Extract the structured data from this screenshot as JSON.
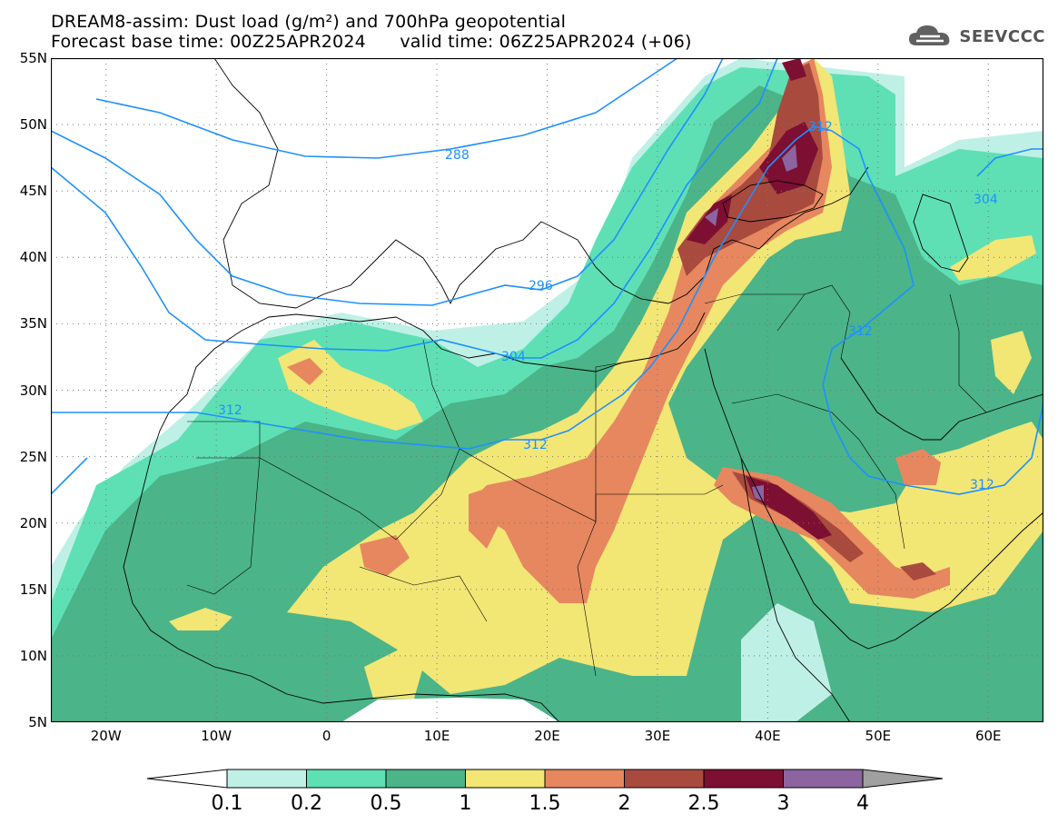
{
  "title": {
    "line1": "DREAM8-assim: Dust load (g/m²) and 700hPa geopotential",
    "line2_left": "Forecast base time: 00Z25APR2024",
    "line2_right": "valid time: 06Z25APR2024 (+06)"
  },
  "logo": {
    "icon": "cloud-icon",
    "text": "SEEVCCC",
    "color": "#555555"
  },
  "axes": {
    "lat_labels": [
      "55N",
      "50N",
      "45N",
      "40N",
      "35N",
      "30N",
      "25N",
      "20N",
      "15N",
      "10N",
      "5N"
    ],
    "lat_values": [
      55,
      50,
      45,
      40,
      35,
      30,
      25,
      20,
      15,
      10,
      5
    ],
    "lon_labels": [
      "20W",
      "10W",
      "0",
      "10E",
      "20E",
      "30E",
      "40E",
      "50E",
      "60E"
    ],
    "lon_values": [
      -20,
      -10,
      0,
      10,
      20,
      30,
      40,
      50,
      60
    ],
    "lon_range": [
      -25,
      65
    ],
    "lat_range": [
      5,
      55
    ],
    "grid": "dotted"
  },
  "contours": {
    "variable": "700hPa geopotential",
    "color": "#1e90ff",
    "labels": [
      "288",
      "296",
      "304",
      "312",
      "312",
      "312",
      "312",
      "312",
      "304"
    ]
  },
  "colorbar": {
    "labels": [
      "0.1",
      "0.2",
      "0.5",
      "1",
      "1.5",
      "2",
      "2.5",
      "3",
      "4"
    ],
    "colors": [
      "#ffffff",
      "#bff0e6",
      "#5ee0b4",
      "#4bb489",
      "#f2e675",
      "#e6875f",
      "#a94a3f",
      "#7d0f32",
      "#8c64a0",
      "#a0a0a0"
    ]
  }
}
